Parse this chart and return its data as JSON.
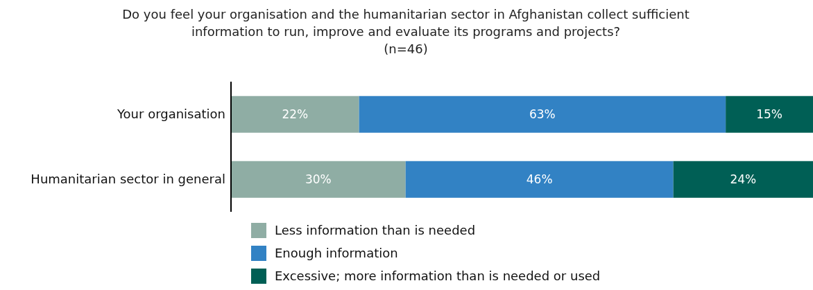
{
  "chart_data": {
    "type": "bar",
    "orientation": "horizontal",
    "stacked": true,
    "title": "Do you feel your organisation and the humanitarian sector in Afghanistan collect sufficient information to run, improve and evaluate its programs and projects?",
    "subtitle": "(n=46)",
    "categories": [
      "Your organisation",
      "Humanitarian sector in general"
    ],
    "series": [
      {
        "name": "Less information than is needed",
        "color": "#8fada4",
        "values": [
          22,
          30
        ],
        "value_labels": [
          "22%",
          "30%"
        ]
      },
      {
        "name": "Enough information",
        "color": "#3282c4",
        "values": [
          63,
          46
        ],
        "value_labels": [
          "63%",
          "46%"
        ]
      },
      {
        "name": "Excessive; more information than is needed or used",
        "color": "#005f55",
        "values": [
          15,
          24
        ],
        "value_labels": [
          "15%",
          "24%"
        ]
      }
    ],
    "tick_labels": "y",
    "legend": "bottom",
    "grid": false
  }
}
